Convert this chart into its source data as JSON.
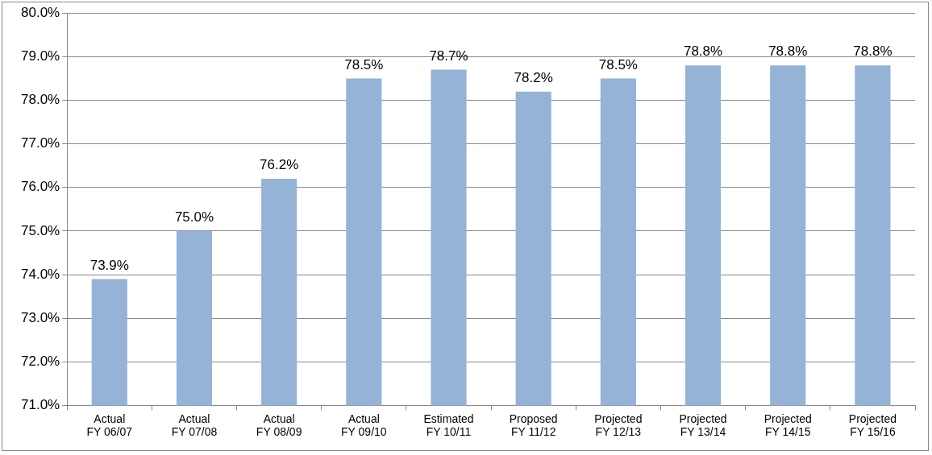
{
  "chart_data": {
    "type": "bar",
    "categories": [
      "Actual\nFY 06/07",
      "Actual\nFY 07/08",
      "Actual\nFY 08/09",
      "Actual\nFY 09/10",
      "Estimated\nFY 10/11",
      "Proposed\nFY 11/12",
      "Projected\nFY 12/13",
      "Projected\nFY 13/14",
      "Projected\nFY 14/15",
      "Projected\nFY 15/16"
    ],
    "values": [
      73.9,
      75.0,
      76.2,
      78.5,
      78.7,
      78.2,
      78.5,
      78.8,
      78.8,
      78.8
    ],
    "value_labels": [
      "73.9%",
      "75.0%",
      "76.2%",
      "78.5%",
      "78.7%",
      "78.2%",
      "78.5%",
      "78.8%",
      "78.8%",
      "78.8%"
    ],
    "color": "#95b3d7",
    "ylim": [
      71,
      80
    ],
    "yticks": [
      {
        "value": 71,
        "label": "71.0%"
      },
      {
        "value": 72,
        "label": "72.0%"
      },
      {
        "value": 73,
        "label": "73.0%"
      },
      {
        "value": 74,
        "label": "74.0%"
      },
      {
        "value": 75,
        "label": "75.0%"
      },
      {
        "value": 76,
        "label": "76.0%"
      },
      {
        "value": 77,
        "label": "77.0%"
      },
      {
        "value": 78,
        "label": "78.0%"
      },
      {
        "value": 79,
        "label": "79.0%"
      },
      {
        "value": 80,
        "label": "80.0%"
      }
    ],
    "grid": "y",
    "legend": false
  }
}
